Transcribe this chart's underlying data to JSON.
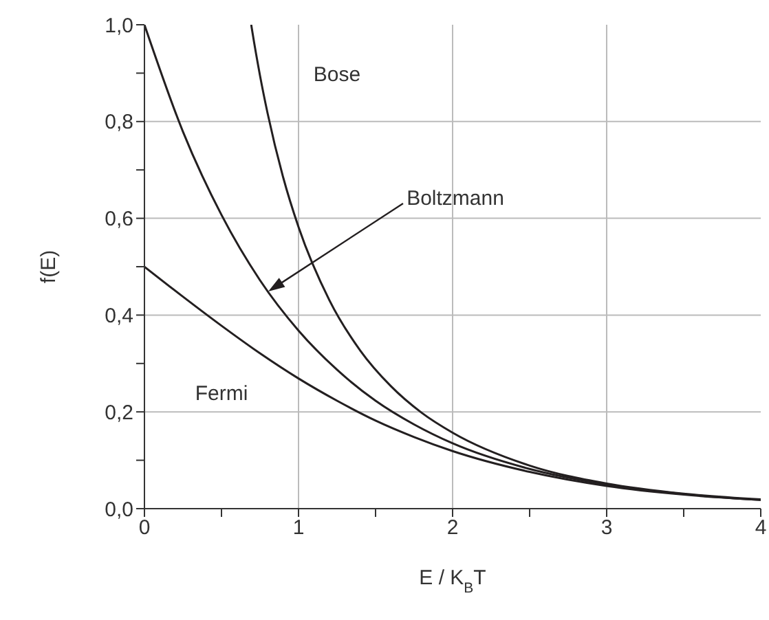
{
  "chart_data": {
    "type": "line",
    "xlabel": "E / K$_{B}$T",
    "ylabel": "f(E)",
    "xlim": [
      0,
      4
    ],
    "xticks": [
      0,
      {
        "value": 0.5,
        "label": null
      },
      1,
      {
        "value": 1.5,
        "label": null
      },
      2,
      {
        "value": 2.5,
        "label": null
      },
      3,
      {
        "value": 3.5,
        "label": null
      },
      4
    ],
    "ylim": [
      0,
      1
    ],
    "yticks": [
      {
        "value": 0,
        "label": "0,0"
      },
      {
        "value": 0.1,
        "label": null
      },
      {
        "value": 0.2,
        "label": "0,2"
      },
      {
        "value": 0.3,
        "label": null
      },
      {
        "value": 0.4,
        "label": "0,4"
      },
      {
        "value": 0.5,
        "label": null
      },
      {
        "value": 0.6,
        "label": "0,6"
      },
      {
        "value": 0.7,
        "label": null
      },
      {
        "value": 0.8,
        "label": "0,8"
      },
      {
        "value": 0.9,
        "label": null
      },
      {
        "value": 1,
        "label": "1,0"
      }
    ],
    "grid": true,
    "marker": "none",
    "line_style": "solid",
    "series": [
      {
        "color": "#231f20",
        "x": [
          0.693,
          0.7,
          0.75,
          0.8,
          0.9,
          1,
          1.2,
          1.4,
          1.6,
          1.8,
          2,
          2.5,
          3,
          3.5,
          4
        ],
        "values": [
          1,
          0.986,
          0.895,
          0.816,
          0.685,
          0.582,
          0.431,
          0.327,
          0.253,
          0.198,
          0.157,
          0.089,
          0.052,
          0.031,
          0.019
        ]
      },
      {
        "color": "#231f20",
        "x": [
          0,
          0.25,
          0.5,
          0.75,
          1,
          1.25,
          1.5,
          1.75,
          2,
          2.5,
          3,
          3.5,
          4
        ],
        "values": [
          1,
          0.779,
          0.607,
          0.472,
          0.368,
          0.287,
          0.223,
          0.174,
          0.135,
          0.082,
          0.05,
          0.03,
          0.018
        ]
      },
      {
        "color": "#231f20",
        "x": [
          0,
          0.25,
          0.5,
          0.75,
          1,
          1.25,
          1.5,
          1.75,
          2,
          2.5,
          3,
          3.5,
          4
        ],
        "values": [
          0.5,
          0.438,
          0.378,
          0.321,
          0.269,
          0.223,
          0.182,
          0.148,
          0.119,
          0.076,
          0.047,
          0.029,
          0.018
        ]
      }
    ],
    "annotations": [
      {
        "text": "Bose",
        "x": 0.75,
        "y": 0.895
      },
      "Boltzmann",
      {
        "text": "Fermi",
        "x": 0.5,
        "y": 0.378
      }
    ]
  }
}
